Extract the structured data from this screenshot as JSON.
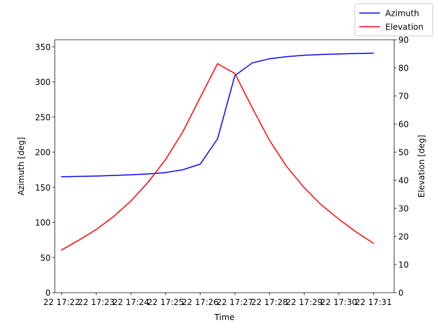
{
  "chart_data": {
    "type": "line",
    "xlabel": "Time",
    "x_ticks": [
      "22 17:22",
      "22 17:23",
      "22 17:24",
      "22 17:25",
      "22 17:26",
      "22 17:27",
      "22 17:28",
      "22 17:29",
      "22 17:30",
      "22 17:31"
    ],
    "x": [
      "17:22:00",
      "17:22:30",
      "17:23:00",
      "17:23:30",
      "17:24:00",
      "17:24:30",
      "17:25:00",
      "17:25:30",
      "17:26:00",
      "17:26:30",
      "17:27:00",
      "17:27:30",
      "17:28:00",
      "17:28:30",
      "17:29:00",
      "17:29:30",
      "17:30:00",
      "17:30:30",
      "17:31:00"
    ],
    "xlim": [
      "17:21:48",
      "17:31:36"
    ],
    "y_left": {
      "label": "Azimuth [deg]",
      "lim": [
        0,
        360
      ],
      "ticks": [
        0,
        50,
        100,
        150,
        200,
        250,
        300,
        350
      ]
    },
    "y_right": {
      "label": "Elevation [deg]",
      "lim": [
        0,
        90
      ],
      "ticks": [
        0,
        10,
        20,
        30,
        40,
        50,
        60,
        70,
        80,
        90
      ]
    },
    "series": [
      {
        "name": "Azimuth",
        "axis": "left",
        "color": "#0000ff",
        "values": [
          165,
          165.5,
          166,
          166.8,
          167.8,
          169,
          171,
          175,
          183,
          219,
          309,
          327,
          333,
          336,
          338,
          339,
          339.8,
          340.4,
          341
        ]
      },
      {
        "name": "Elevation",
        "axis": "right",
        "color": "#ff0000",
        "values": [
          15.2,
          18.7,
          22.5,
          27.1,
          32.6,
          39.4,
          47.4,
          57.3,
          69.5,
          81.5,
          78.0,
          65.8,
          54.2,
          44.8,
          37.4,
          31.2,
          26.2,
          21.6,
          17.6
        ]
      }
    ],
    "legend": {
      "placement": "top-right",
      "entries": [
        "Azimuth",
        "Elevation"
      ]
    },
    "grid": false
  }
}
